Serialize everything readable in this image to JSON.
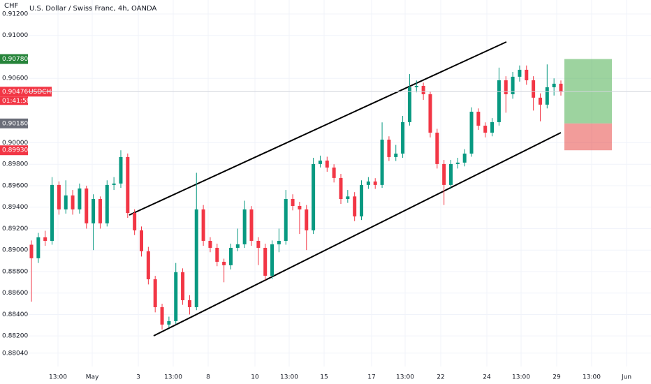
{
  "chart_data": {
    "type": "candlestick",
    "title": "U.S. Dollar / Swiss Franc, 4h, OANDA",
    "currency": "CHF",
    "up_color": "#089981",
    "down_color": "#f23645",
    "grid": true,
    "ylim": [
      0.87915,
      0.9133
    ],
    "yticks": [
      {
        "value": 0.912,
        "label": "0.91200"
      },
      {
        "value": 0.91,
        "label": "0.91000"
      },
      {
        "value": 0.906,
        "label": "0.90600"
      },
      {
        "value": 0.9,
        "label": "0.90000"
      },
      {
        "value": 0.898,
        "label": "0.89800"
      },
      {
        "value": 0.896,
        "label": "0.89600"
      },
      {
        "value": 0.894,
        "label": "0.89400"
      },
      {
        "value": 0.892,
        "label": "0.89200"
      },
      {
        "value": 0.89,
        "label": "0.89000"
      },
      {
        "value": 0.888,
        "label": "0.88800"
      },
      {
        "value": 0.886,
        "label": "0.88600"
      },
      {
        "value": 0.884,
        "label": "0.88400"
      },
      {
        "value": 0.882,
        "label": "0.88200"
      },
      {
        "value": 0.8804,
        "label": "0.88040"
      }
    ],
    "x_labels": [
      "13:00",
      "May",
      "3",
      "13:00",
      "8",
      "10",
      "13:00",
      "15",
      "17",
      "13:00",
      "22",
      "24",
      "13:00",
      "29",
      "13:00",
      "Jun"
    ],
    "open": [
      0.8905,
      0.88924,
      0.89119,
      0.89086,
      0.89607,
      0.89379,
      0.89509,
      0.89379,
      0.89574,
      0.89249,
      0.89476,
      0.89249,
      0.89607,
      0.8962,
      0.89867,
      0.89346,
      0.89184,
      0.88989,
      0.88728,
      0.88468,
      0.88306,
      0.88338,
      0.88794,
      0.88533,
      0.88468,
      0.89379,
      0.89086,
      0.89021,
      0.88891,
      0.88859,
      0.89021,
      0.89054,
      0.89379,
      0.89086,
      0.89021,
      0.88761,
      0.89054,
      0.89086,
      0.89476,
      0.89411,
      0.89379,
      0.89184,
      0.89802,
      0.89834,
      0.89769,
      0.89672,
      0.89476,
      0.895,
      0.89314,
      0.89607,
      0.89639,
      0.89607,
      0.90029,
      0.89867,
      0.89899,
      0.90192,
      0.90517,
      0.9053,
      0.90452,
      0.90094,
      0.89802,
      0.89607,
      0.89802,
      0.89815,
      0.89899,
      0.90289,
      0.90159,
      0.90094,
      0.90192,
      0.90582,
      0.90452,
      0.90615,
      0.9068,
      0.90582,
      0.9042,
      0.90355,
      0.90517,
      0.9055
    ],
    "high": [
      0.8909,
      0.8916,
      0.8918,
      0.8968,
      0.8964,
      0.8965,
      0.8956,
      0.8962,
      0.896,
      0.8952,
      0.895,
      0.8965,
      0.8968,
      0.8993,
      0.899,
      0.8938,
      0.8922,
      0.8903,
      0.8876,
      0.885,
      0.8838,
      0.8888,
      0.8883,
      0.8858,
      0.8972,
      0.8942,
      0.8912,
      0.8906,
      0.8892,
      0.8906,
      0.892,
      0.8946,
      0.8941,
      0.8912,
      0.8906,
      0.8909,
      0.892,
      0.8956,
      0.8952,
      0.8945,
      0.8942,
      0.8986,
      0.8988,
      0.8987,
      0.898,
      0.8971,
      0.8956,
      0.8954,
      0.8965,
      0.8968,
      0.8967,
      0.9019,
      0.9006,
      0.8998,
      0.9025,
      0.9064,
      0.9058,
      0.9056,
      0.9048,
      0.9013,
      0.8984,
      0.8984,
      0.8986,
      0.8994,
      0.9033,
      0.9032,
      0.9019,
      0.9023,
      0.907,
      0.9062,
      0.9066,
      0.9072,
      0.9072,
      0.9062,
      0.9046,
      0.9073,
      0.906,
      0.9058
    ],
    "low": [
      0.8852,
      0.8888,
      0.8904,
      0.8905,
      0.8933,
      0.8934,
      0.8933,
      0.8934,
      0.892,
      0.89,
      0.892,
      0.8922,
      0.8956,
      0.8958,
      0.893,
      0.8914,
      0.8894,
      0.8868,
      0.8842,
      0.8826,
      0.8828,
      0.8831,
      0.8849,
      0.884,
      0.8844,
      0.8904,
      0.8898,
      0.8885,
      0.887,
      0.8882,
      0.8899,
      0.8902,
      0.8904,
      0.8886,
      0.8872,
      0.8873,
      0.8898,
      0.8905,
      0.8937,
      0.8915,
      0.89,
      0.8915,
      0.8977,
      0.8973,
      0.8963,
      0.8943,
      0.8944,
      0.8927,
      0.8928,
      0.8957,
      0.8957,
      0.8958,
      0.8983,
      0.8983,
      0.8986,
      0.9016,
      0.9047,
      0.904,
      0.9005,
      0.8976,
      0.8942,
      0.8957,
      0.8976,
      0.8978,
      0.8987,
      0.9012,
      0.9005,
      0.9006,
      0.9016,
      0.9028,
      0.9041,
      0.9057,
      0.9054,
      0.903,
      0.902,
      0.9032,
      0.9044,
      0.9044
    ],
    "close": [
      0.88924,
      0.89119,
      0.89086,
      0.89607,
      0.89379,
      0.89509,
      0.89379,
      0.89574,
      0.89249,
      0.89476,
      0.89249,
      0.89607,
      0.8962,
      0.89867,
      0.89346,
      0.89184,
      0.88989,
      0.88728,
      0.88468,
      0.88306,
      0.88338,
      0.88794,
      0.88533,
      0.88468,
      0.89379,
      0.89086,
      0.89021,
      0.88891,
      0.88859,
      0.89021,
      0.89054,
      0.89379,
      0.89086,
      0.89021,
      0.88761,
      0.89054,
      0.89086,
      0.89476,
      0.89411,
      0.89379,
      0.89184,
      0.89802,
      0.89834,
      0.89769,
      0.89672,
      0.89476,
      0.895,
      0.89314,
      0.89607,
      0.89639,
      0.89607,
      0.90029,
      0.89867,
      0.89899,
      0.90192,
      0.90517,
      0.9053,
      0.90452,
      0.90094,
      0.89802,
      0.89607,
      0.89802,
      0.89815,
      0.89899,
      0.90289,
      0.90159,
      0.90094,
      0.90192,
      0.90582,
      0.90452,
      0.90615,
      0.9068,
      0.90582,
      0.9042,
      0.90355,
      0.90517,
      0.9055,
      0.90476
    ],
    "price_labels": [
      {
        "value": 0.9078,
        "label": "0.90780",
        "color": "#26843a"
      },
      {
        "value": 0.9018,
        "label": "0.90180",
        "color": "#6a6d78"
      },
      {
        "value": 0.8993,
        "label": "0.89930",
        "color": "#f23645"
      }
    ],
    "current_price": {
      "value": 0.90476,
      "label": "0.90476",
      "symbol": "USDCHF",
      "countdown": "01:41:58",
      "color": "#f23645"
    }
  }
}
